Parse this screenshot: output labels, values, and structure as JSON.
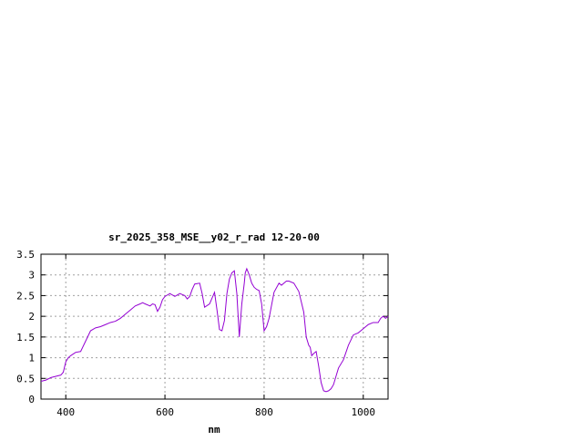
{
  "chart_data": {
    "type": "line",
    "title": "sr_2025_358_MSE__y02_r_rad 12-20-00",
    "xlabel": "nm",
    "ylabel": "",
    "xlim": [
      350,
      1050
    ],
    "ylim": [
      0,
      3.5
    ],
    "x_ticks": [
      {
        "value": 400,
        "label": "400"
      },
      {
        "value": 600,
        "label": "600"
      },
      {
        "value": 800,
        "label": "800"
      },
      {
        "value": 1000,
        "label": "1000"
      }
    ],
    "y_ticks": [
      {
        "value": 0,
        "label": "0"
      },
      {
        "value": 0.5,
        "label": "0.5"
      },
      {
        "value": 1,
        "label": "1"
      },
      {
        "value": 1.5,
        "label": "1.5"
      },
      {
        "value": 2,
        "label": "2"
      },
      {
        "value": 2.5,
        "label": "2.5"
      },
      {
        "value": 3,
        "label": "3"
      },
      {
        "value": 3.5,
        "label": "3.5"
      }
    ],
    "grid": true,
    "legend": "none",
    "colors": {
      "series": "#9400d3",
      "grid": "#a0a0a0",
      "axis": "#000000"
    },
    "series": [
      {
        "x": [
          350,
          360,
          370,
          380,
          390,
          395,
          400,
          405,
          410,
          420,
          430,
          440,
          450,
          460,
          470,
          480,
          490,
          500,
          510,
          520,
          530,
          540,
          550,
          555,
          560,
          570,
          575,
          580,
          585,
          590,
          595,
          600,
          610,
          620,
          630,
          640,
          645,
          650,
          655,
          660,
          670,
          675,
          680,
          690,
          700,
          705,
          710,
          715,
          720,
          725,
          730,
          735,
          740,
          745,
          750,
          755,
          760,
          762,
          765,
          770,
          775,
          780,
          785,
          790,
          795,
          800,
          805,
          810,
          820,
          830,
          835,
          840,
          845,
          850,
          860,
          870,
          880,
          885,
          890,
          893,
          896,
          900,
          905,
          910,
          915,
          920,
          925,
          930,
          935,
          940,
          945,
          950,
          960,
          970,
          980,
          990,
          1000,
          1010,
          1020,
          1030,
          1035,
          1040,
          1045,
          1050
        ],
        "y": [
          0.43,
          0.46,
          0.52,
          0.55,
          0.58,
          0.65,
          0.9,
          1.0,
          1.05,
          1.13,
          1.15,
          1.4,
          1.65,
          1.72,
          1.75,
          1.8,
          1.85,
          1.88,
          1.95,
          2.05,
          2.15,
          2.25,
          2.3,
          2.33,
          2.3,
          2.25,
          2.3,
          2.28,
          2.12,
          2.22,
          2.4,
          2.48,
          2.55,
          2.48,
          2.55,
          2.5,
          2.42,
          2.48,
          2.65,
          2.78,
          2.8,
          2.55,
          2.22,
          2.3,
          2.58,
          2.15,
          1.68,
          1.65,
          1.9,
          2.55,
          2.9,
          3.05,
          3.1,
          2.55,
          1.5,
          2.3,
          2.8,
          3.05,
          3.15,
          3.0,
          2.8,
          2.7,
          2.65,
          2.62,
          2.3,
          1.65,
          1.75,
          1.95,
          2.58,
          2.8,
          2.75,
          2.8,
          2.85,
          2.85,
          2.8,
          2.6,
          2.1,
          1.5,
          1.3,
          1.25,
          1.05,
          1.1,
          1.15,
          0.8,
          0.4,
          0.2,
          0.18,
          0.2,
          0.25,
          0.35,
          0.55,
          0.75,
          0.95,
          1.3,
          1.55,
          1.6,
          1.7,
          1.8,
          1.85,
          1.85,
          1.95,
          2.0,
          1.95,
          2.0
        ]
      }
    ]
  }
}
